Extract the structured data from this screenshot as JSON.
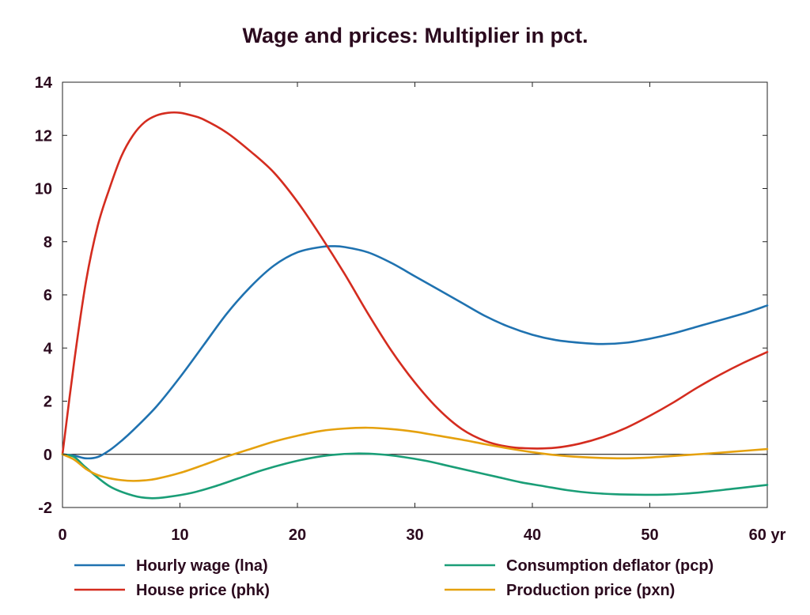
{
  "chart_data": {
    "type": "line",
    "title": "Wage and prices: Multiplier in pct.",
    "x_unit_label": "yr",
    "xlim": [
      0,
      60
    ],
    "ylim": [
      -2,
      14
    ],
    "x_ticks": [
      0,
      10,
      20,
      30,
      40,
      50,
      60
    ],
    "y_ticks": [
      -2,
      0,
      2,
      4,
      6,
      8,
      10,
      12,
      14
    ],
    "zero_line": true,
    "grid": false,
    "legend_position": "bottom",
    "series": [
      {
        "name": "Hourly wage (lna)",
        "color": "#1f72b0",
        "x": [
          0,
          1,
          2,
          3,
          4,
          5,
          6,
          8,
          10,
          12,
          14,
          16,
          18,
          20,
          22,
          23,
          24,
          26,
          28,
          30,
          32,
          34,
          36,
          38,
          40,
          42,
          44,
          46,
          48,
          50,
          52,
          54,
          56,
          58,
          60
        ],
        "y": [
          0,
          -0.05,
          -0.15,
          -0.1,
          0.15,
          0.5,
          0.9,
          1.8,
          2.9,
          4.1,
          5.3,
          6.3,
          7.1,
          7.6,
          7.8,
          7.83,
          7.8,
          7.6,
          7.2,
          6.7,
          6.2,
          5.7,
          5.2,
          4.8,
          4.5,
          4.3,
          4.2,
          4.15,
          4.2,
          4.35,
          4.55,
          4.8,
          5.05,
          5.3,
          5.6
        ]
      },
      {
        "name": "House price (phk)",
        "color": "#d42c1f",
        "x": [
          0,
          1,
          2,
          3,
          4,
          5,
          6,
          7,
          8,
          9,
          10,
          11,
          12,
          14,
          16,
          18,
          20,
          22,
          24,
          26,
          28,
          30,
          32,
          34,
          36,
          38,
          40,
          42,
          44,
          46,
          48,
          50,
          52,
          54,
          56,
          58,
          60
        ],
        "y": [
          0,
          3.5,
          6.5,
          8.6,
          10.0,
          11.2,
          12.0,
          12.5,
          12.75,
          12.85,
          12.85,
          12.75,
          12.6,
          12.1,
          11.4,
          10.6,
          9.5,
          8.2,
          6.8,
          5.3,
          3.9,
          2.7,
          1.7,
          0.95,
          0.5,
          0.28,
          0.22,
          0.25,
          0.4,
          0.65,
          1.0,
          1.45,
          1.95,
          2.5,
          3.0,
          3.45,
          3.85
        ]
      },
      {
        "name": "Consumption deflator (pcp)",
        "color": "#1a9e77",
        "x": [
          0,
          1,
          2,
          4,
          6,
          7.5,
          9,
          11,
          13,
          15,
          17,
          19,
          21,
          23,
          25,
          27,
          29,
          31,
          33,
          35,
          37,
          39,
          41,
          43,
          45,
          47,
          49,
          51,
          53,
          55,
          57,
          59,
          60
        ],
        "y": [
          0,
          -0.1,
          -0.5,
          -1.2,
          -1.55,
          -1.65,
          -1.6,
          -1.45,
          -1.2,
          -0.9,
          -0.6,
          -0.35,
          -0.15,
          -0.02,
          0.03,
          0.0,
          -0.1,
          -0.25,
          -0.45,
          -0.65,
          -0.85,
          -1.05,
          -1.2,
          -1.35,
          -1.45,
          -1.5,
          -1.52,
          -1.52,
          -1.48,
          -1.4,
          -1.3,
          -1.2,
          -1.15
        ]
      },
      {
        "name": "Production price (pxn)",
        "color": "#e5a10e",
        "x": [
          0,
          1,
          2,
          3,
          4,
          5,
          6,
          7,
          8,
          10,
          12,
          14,
          16,
          18,
          20,
          22,
          24,
          26,
          28,
          30,
          32,
          34,
          36,
          38,
          40,
          42,
          44,
          46,
          48,
          50,
          52,
          54,
          56,
          58,
          60
        ],
        "y": [
          0,
          -0.2,
          -0.55,
          -0.78,
          -0.9,
          -0.97,
          -1.0,
          -0.98,
          -0.92,
          -0.7,
          -0.4,
          -0.08,
          0.2,
          0.48,
          0.7,
          0.88,
          0.97,
          1.0,
          0.95,
          0.85,
          0.7,
          0.55,
          0.38,
          0.22,
          0.08,
          -0.03,
          -0.1,
          -0.14,
          -0.15,
          -0.12,
          -0.06,
          0.0,
          0.06,
          0.13,
          0.2
        ]
      }
    ]
  }
}
